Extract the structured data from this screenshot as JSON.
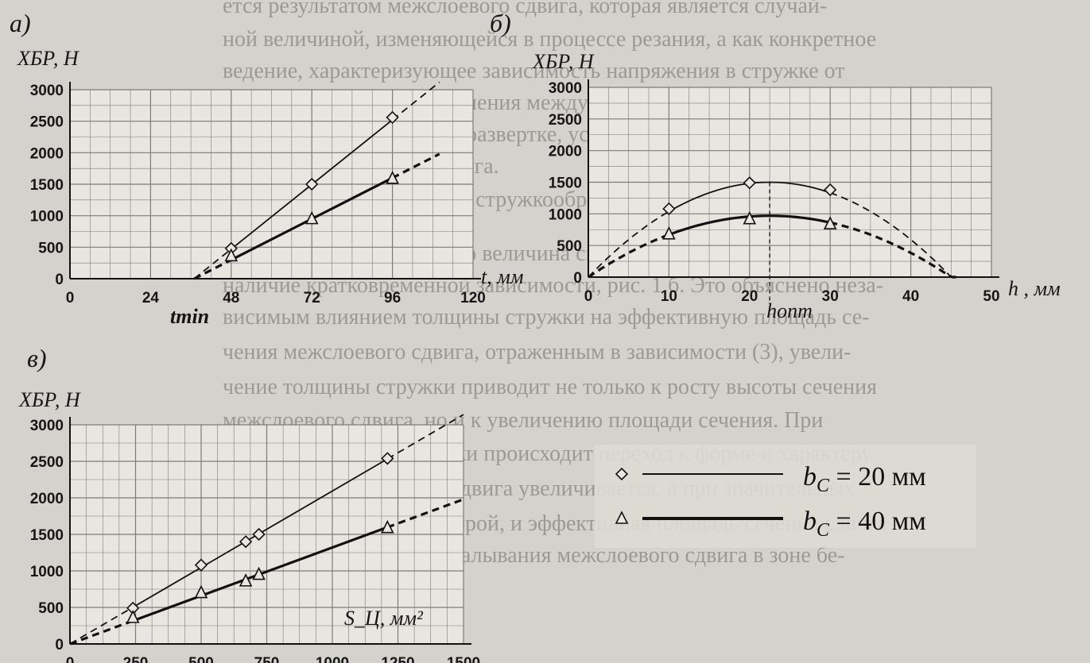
{
  "background_text": [
    "ется результатом межслоевого сдвига, которая является случай-",
    "ной величиной, изменяющейся в процессе резания, а как конкретное",
    "ведение, характеризующее зависимость напряжения в стружке от",
    "величины, условие разрушения между нижней поверхностью и",
    "деформации, стружку, на развертке, условие, гирей, показатель",
    "сечения межслоевого сдвига.",
    "3. Исследования процесса стружкообразования при резании",
    "позволили установить, что величина силы резания на передней поверхности",
    "наличие кратковременной зависимости, рис. 1 б. Это объяснено неза-",
    "висимым влиянием толщины стружки на эффективную площадь се-",
    "чения межслоевого сдвига, отраженным в зависимости (3), увели-",
    "чение толщины стружки приводит не только к росту высоты сечения",
    "межслоевого сдвига, но и к увеличению площади сечения. При",
    "большей толщине стружки происходит переход к форме и характеру",
    "тения площадь сечения сдвига увеличивается, а при значительных",
    "толщинах стружки — второй, и эффективная площадь сечения сдвига",
    "уменьшается. Условие скалывания межслоевого сдвига в зоне бе-"
  ],
  "chart_data": [
    {
      "panel_label": "а)",
      "type": "line",
      "ylabel": "X_БР, Н",
      "xlabel": "t, мм",
      "x_extra_label": "t_min",
      "xlim": [
        0,
        120
      ],
      "ylim": [
        0,
        3000
      ],
      "xticks": [
        "0",
        "24",
        "48",
        "72",
        "96",
        "120"
      ],
      "yticks": [
        "0",
        "500",
        "1000",
        "1500",
        "2000",
        "2500",
        "3000"
      ],
      "grid": true,
      "series": [
        {
          "name": "b_C = 20 мм",
          "marker": "diamond",
          "points": [
            [
              48,
              480
            ],
            [
              72,
              1500
            ],
            [
              96,
              2560
            ]
          ],
          "x": [
            37,
            110
          ],
          "y": [
            0,
            3120
          ]
        },
        {
          "name": "b_C = 40 мм",
          "marker": "triangle",
          "points": [
            [
              48,
              360
            ],
            [
              72,
              950
            ],
            [
              96,
              1590
            ]
          ],
          "x": [
            37,
            110
          ],
          "y": [
            0,
            1980
          ]
        }
      ]
    },
    {
      "panel_label": "б)",
      "type": "line",
      "ylabel": "X_БР, Н",
      "xlabel": "h , мм",
      "x_extra_label": "h_опт",
      "xlim": [
        0,
        50
      ],
      "ylim": [
        0,
        3000
      ],
      "xticks": [
        "0",
        "10",
        "20",
        "30",
        "40",
        "50"
      ],
      "yticks": [
        "0",
        "500",
        "1000",
        "1500",
        "2000",
        "2500",
        "3000"
      ],
      "grid": true,
      "series": [
        {
          "name": "b_C = 20 мм",
          "marker": "diamond",
          "points": [
            [
              10,
              1080
            ],
            [
              20,
              1490
            ],
            [
              30,
              1380
            ]
          ],
          "x_range": [
            0,
            47.5
          ],
          "peak": [
            22.5,
            1500
          ]
        },
        {
          "name": "b_C = 40 мм",
          "marker": "triangle",
          "points": [
            [
              10,
              680
            ],
            [
              20,
              920
            ],
            [
              30,
              840
            ]
          ],
          "x_range": [
            0,
            46
          ],
          "peak": [
            22.5,
            970
          ]
        }
      ],
      "annotations": {
        "h_opt": 22.5
      }
    },
    {
      "panel_label": "в)",
      "type": "line",
      "ylabel": "X_БР, Н",
      "xlabel": "S_Ц, мм²",
      "xlim": [
        0,
        1500
      ],
      "ylim": [
        0,
        3000
      ],
      "xticks": [
        "0",
        "250",
        "500",
        "750",
        "1000",
        "1250",
        "1500"
      ],
      "yticks": [
        "0",
        "500",
        "1000",
        "1500",
        "2000",
        "2500",
        "3000"
      ],
      "grid": true,
      "series": [
        {
          "name": "b_C = 20 мм",
          "marker": "diamond",
          "points": [
            [
              240,
              490
            ],
            [
              500,
              1080
            ],
            [
              670,
              1400
            ],
            [
              720,
              1500
            ],
            [
              1210,
              2540
            ]
          ],
          "x": [
            0,
            1500
          ],
          "y": [
            0,
            3140
          ]
        },
        {
          "name": "b_C = 40 мм",
          "marker": "triangle",
          "points": [
            [
              240,
              360
            ],
            [
              500,
              700
            ],
            [
              670,
              860
            ],
            [
              720,
              950
            ],
            [
              1210,
              1590
            ]
          ],
          "x": [
            0,
            1500
          ],
          "y": [
            0,
            1980
          ]
        }
      ]
    }
  ],
  "legend": [
    {
      "marker": "diamond",
      "label_prefix": "b",
      "label_sub": "C",
      "label_suffix": " = 20 мм"
    },
    {
      "marker": "triangle",
      "label_prefix": "b",
      "label_sub": "C",
      "label_suffix": " = 40 мм"
    }
  ]
}
